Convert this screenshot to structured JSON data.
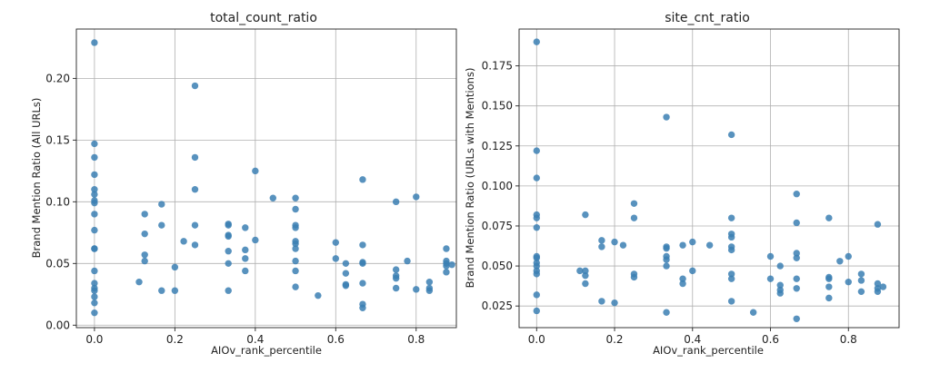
{
  "chart_data": [
    {
      "type": "scatter",
      "title": "total_count_ratio",
      "xlabel": "AIOv_rank_percentile",
      "ylabel": "Brand Mention Ratio (All URLs)",
      "xlim": [
        -0.045,
        0.9
      ],
      "ylim": [
        -0.002,
        0.24
      ],
      "xticks": [
        0.0,
        0.2,
        0.4,
        0.6,
        0.8
      ],
      "xtick_labels": [
        "0.0",
        "0.2",
        "0.4",
        "0.6",
        "0.8"
      ],
      "yticks": [
        0.0,
        0.05,
        0.1,
        0.15,
        0.2
      ],
      "ytick_labels": [
        "0.00",
        "0.05",
        "0.10",
        "0.15",
        "0.20"
      ],
      "grid": true,
      "color": "#3b7fb3",
      "points": [
        [
          0.0,
          0.229
        ],
        [
          0.0,
          0.147
        ],
        [
          0.0,
          0.136
        ],
        [
          0.0,
          0.122
        ],
        [
          0.0,
          0.11
        ],
        [
          0.0,
          0.106
        ],
        [
          0.0,
          0.101
        ],
        [
          0.0,
          0.099
        ],
        [
          0.0,
          0.09
        ],
        [
          0.0,
          0.077
        ],
        [
          0.0,
          0.062
        ],
        [
          0.0,
          0.062
        ],
        [
          0.0,
          0.044
        ],
        [
          0.0,
          0.034
        ],
        [
          0.0,
          0.03
        ],
        [
          0.0,
          0.028
        ],
        [
          0.0,
          0.023
        ],
        [
          0.0,
          0.018
        ],
        [
          0.0,
          0.01
        ],
        [
          0.111,
          0.035
        ],
        [
          0.125,
          0.09
        ],
        [
          0.125,
          0.074
        ],
        [
          0.125,
          0.057
        ],
        [
          0.125,
          0.052
        ],
        [
          0.167,
          0.098
        ],
        [
          0.167,
          0.081
        ],
        [
          0.167,
          0.028
        ],
        [
          0.2,
          0.047
        ],
        [
          0.2,
          0.028
        ],
        [
          0.222,
          0.068
        ],
        [
          0.25,
          0.194
        ],
        [
          0.25,
          0.136
        ],
        [
          0.25,
          0.11
        ],
        [
          0.25,
          0.081
        ],
        [
          0.25,
          0.065
        ],
        [
          0.333,
          0.082
        ],
        [
          0.333,
          0.081
        ],
        [
          0.333,
          0.073
        ],
        [
          0.333,
          0.072
        ],
        [
          0.333,
          0.06
        ],
        [
          0.333,
          0.05
        ],
        [
          0.333,
          0.028
        ],
        [
          0.375,
          0.079
        ],
        [
          0.375,
          0.061
        ],
        [
          0.375,
          0.054
        ],
        [
          0.375,
          0.044
        ],
        [
          0.4,
          0.125
        ],
        [
          0.4,
          0.069
        ],
        [
          0.444,
          0.103
        ],
        [
          0.5,
          0.103
        ],
        [
          0.5,
          0.094
        ],
        [
          0.5,
          0.081
        ],
        [
          0.5,
          0.079
        ],
        [
          0.5,
          0.068
        ],
        [
          0.5,
          0.066
        ],
        [
          0.5,
          0.062
        ],
        [
          0.5,
          0.052
        ],
        [
          0.5,
          0.044
        ],
        [
          0.5,
          0.031
        ],
        [
          0.556,
          0.024
        ],
        [
          0.6,
          0.067
        ],
        [
          0.6,
          0.054
        ],
        [
          0.625,
          0.05
        ],
        [
          0.625,
          0.042
        ],
        [
          0.625,
          0.033
        ],
        [
          0.625,
          0.032
        ],
        [
          0.667,
          0.118
        ],
        [
          0.667,
          0.065
        ],
        [
          0.667,
          0.051
        ],
        [
          0.667,
          0.05
        ],
        [
          0.667,
          0.034
        ],
        [
          0.667,
          0.017
        ],
        [
          0.667,
          0.014
        ],
        [
          0.75,
          0.1
        ],
        [
          0.75,
          0.045
        ],
        [
          0.75,
          0.04
        ],
        [
          0.75,
          0.038
        ],
        [
          0.75,
          0.03
        ],
        [
          0.778,
          0.052
        ],
        [
          0.8,
          0.104
        ],
        [
          0.8,
          0.029
        ],
        [
          0.833,
          0.035
        ],
        [
          0.833,
          0.03
        ],
        [
          0.833,
          0.028
        ],
        [
          0.875,
          0.062
        ],
        [
          0.875,
          0.052
        ],
        [
          0.875,
          0.05
        ],
        [
          0.875,
          0.048
        ],
        [
          0.875,
          0.043
        ],
        [
          0.889,
          0.049
        ]
      ]
    },
    {
      "type": "scatter",
      "title": "site_cnt_ratio",
      "xlabel": "AIOv_rank_percentile",
      "ylabel": "Brand Mention Ratio (URLs with Mentions)",
      "xlim": [
        -0.045,
        0.93
      ],
      "ylim": [
        0.0115,
        0.198
      ],
      "xticks": [
        0.0,
        0.2,
        0.4,
        0.6,
        0.8
      ],
      "xtick_labels": [
        "0.0",
        "0.2",
        "0.4",
        "0.6",
        "0.8"
      ],
      "yticks": [
        0.025,
        0.05,
        0.075,
        0.1,
        0.125,
        0.15,
        0.175
      ],
      "ytick_labels": [
        "0.025",
        "0.050",
        "0.075",
        "0.100",
        "0.125",
        "0.150",
        "0.175"
      ],
      "grid": true,
      "color": "#3b7fb3",
      "points": [
        [
          0.0,
          0.19
        ],
        [
          0.0,
          0.122
        ],
        [
          0.0,
          0.105
        ],
        [
          0.0,
          0.082
        ],
        [
          0.0,
          0.08
        ],
        [
          0.0,
          0.074
        ],
        [
          0.0,
          0.056
        ],
        [
          0.0,
          0.055
        ],
        [
          0.0,
          0.052
        ],
        [
          0.0,
          0.05
        ],
        [
          0.0,
          0.047
        ],
        [
          0.0,
          0.045
        ],
        [
          0.0,
          0.032
        ],
        [
          0.0,
          0.022
        ],
        [
          0.111,
          0.047
        ],
        [
          0.125,
          0.082
        ],
        [
          0.125,
          0.047
        ],
        [
          0.125,
          0.044
        ],
        [
          0.125,
          0.039
        ],
        [
          0.167,
          0.066
        ],
        [
          0.167,
          0.062
        ],
        [
          0.167,
          0.028
        ],
        [
          0.2,
          0.065
        ],
        [
          0.2,
          0.027
        ],
        [
          0.222,
          0.063
        ],
        [
          0.25,
          0.089
        ],
        [
          0.25,
          0.08
        ],
        [
          0.25,
          0.045
        ],
        [
          0.25,
          0.043
        ],
        [
          0.333,
          0.143
        ],
        [
          0.333,
          0.062
        ],
        [
          0.333,
          0.061
        ],
        [
          0.333,
          0.056
        ],
        [
          0.333,
          0.054
        ],
        [
          0.333,
          0.05
        ],
        [
          0.333,
          0.021
        ],
        [
          0.375,
          0.063
        ],
        [
          0.375,
          0.042
        ],
        [
          0.375,
          0.039
        ],
        [
          0.4,
          0.065
        ],
        [
          0.4,
          0.047
        ],
        [
          0.444,
          0.063
        ],
        [
          0.5,
          0.132
        ],
        [
          0.5,
          0.08
        ],
        [
          0.5,
          0.07
        ],
        [
          0.5,
          0.068
        ],
        [
          0.5,
          0.062
        ],
        [
          0.5,
          0.06
        ],
        [
          0.5,
          0.045
        ],
        [
          0.5,
          0.042
        ],
        [
          0.5,
          0.028
        ],
        [
          0.556,
          0.021
        ],
        [
          0.6,
          0.056
        ],
        [
          0.6,
          0.042
        ],
        [
          0.625,
          0.05
        ],
        [
          0.625,
          0.038
        ],
        [
          0.625,
          0.035
        ],
        [
          0.625,
          0.033
        ],
        [
          0.667,
          0.095
        ],
        [
          0.667,
          0.077
        ],
        [
          0.667,
          0.058
        ],
        [
          0.667,
          0.055
        ],
        [
          0.667,
          0.042
        ],
        [
          0.667,
          0.036
        ],
        [
          0.667,
          0.017
        ],
        [
          0.75,
          0.08
        ],
        [
          0.75,
          0.043
        ],
        [
          0.75,
          0.042
        ],
        [
          0.75,
          0.037
        ],
        [
          0.75,
          0.03
        ],
        [
          0.778,
          0.053
        ],
        [
          0.8,
          0.056
        ],
        [
          0.8,
          0.04
        ],
        [
          0.833,
          0.045
        ],
        [
          0.833,
          0.041
        ],
        [
          0.833,
          0.034
        ],
        [
          0.875,
          0.076
        ],
        [
          0.875,
          0.039
        ],
        [
          0.875,
          0.036
        ],
        [
          0.875,
          0.034
        ],
        [
          0.889,
          0.037
        ]
      ]
    }
  ]
}
